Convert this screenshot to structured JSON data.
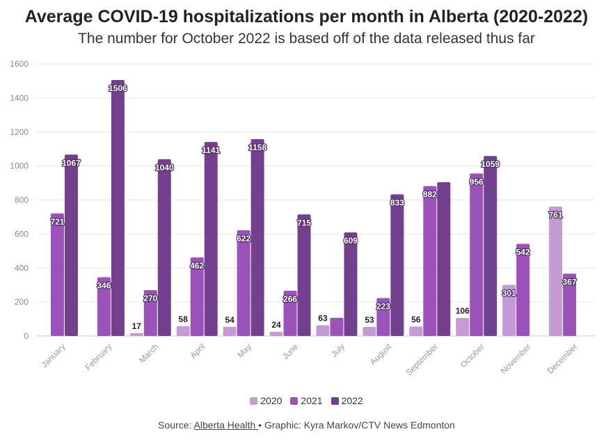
{
  "chart_data": {
    "type": "bar",
    "title": "Average COVID-19 hospitalizations per month in Alberta (2020-2022)",
    "subtitle": "The number for October 2022 is based off of the data released thus far",
    "categories": [
      "January",
      "February",
      "March",
      "April",
      "May",
      "June",
      "July",
      "August",
      "September",
      "October",
      "November",
      "December"
    ],
    "series": [
      {
        "name": "2020",
        "color": "#c59ad5",
        "values": [
          null,
          null,
          17,
          58,
          54,
          24,
          63,
          53,
          56,
          106,
          301,
          761
        ],
        "labels": [
          "",
          "",
          "17",
          "58",
          "54",
          "24",
          "63",
          "53",
          "56",
          "106",
          "301",
          "761"
        ]
      },
      {
        "name": "2021",
        "color": "#9b52b9",
        "values": [
          721,
          346,
          270,
          462,
          622,
          266,
          107,
          223,
          882,
          956,
          542,
          367
        ],
        "labels": [
          "721",
          "346",
          "270",
          "462",
          "622",
          "266",
          "",
          "223",
          "882",
          "956",
          "542",
          "367"
        ]
      },
      {
        "name": "2022",
        "color": "#72408e",
        "values": [
          1067,
          1506,
          1040,
          1141,
          1158,
          715,
          609,
          833,
          905,
          1059,
          null,
          null
        ],
        "labels": [
          "1067",
          "1506",
          "1040",
          "1141",
          "1158",
          "715",
          "609",
          "833",
          "",
          "1059",
          "",
          ""
        ]
      }
    ],
    "ylim": [
      0,
      1600
    ],
    "yticks": [
      0,
      200,
      400,
      600,
      800,
      1000,
      1200,
      1400,
      1600
    ],
    "xlabel": "",
    "ylabel": "",
    "grid": true,
    "legend_position": "bottom"
  },
  "source": {
    "prefix": "Source: ",
    "link_text": "Alberta Health ",
    "suffix": "• Graphic: Kyra Markov/CTV News Edmonton"
  }
}
